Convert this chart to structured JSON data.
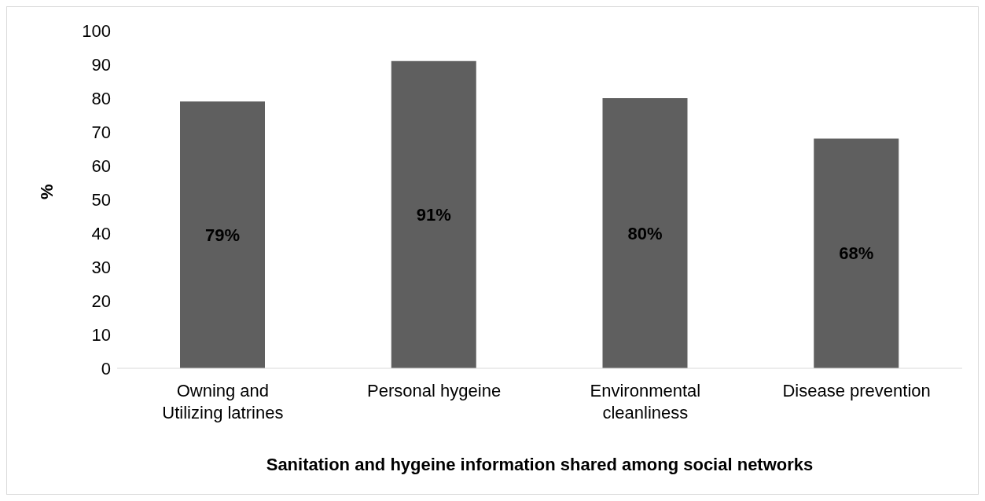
{
  "chart_data": {
    "type": "bar",
    "xlabel": "Sanitation and hygeine information shared among social networks",
    "ylabel": "%",
    "categories": [
      "Owning and\nUtilizing latrines",
      "Personal hygeine",
      "Environmental\ncleanliness",
      "Disease prevention"
    ],
    "values": [
      79,
      91,
      80,
      68
    ],
    "value_labels": [
      "79%",
      "91%",
      "80%",
      "68%"
    ],
    "color": "#5f5f5f",
    "ylim": [
      0,
      100
    ],
    "yticks": [
      0,
      10,
      20,
      30,
      40,
      50,
      60,
      70,
      80,
      90,
      100
    ],
    "grid": false,
    "legend": false
  }
}
